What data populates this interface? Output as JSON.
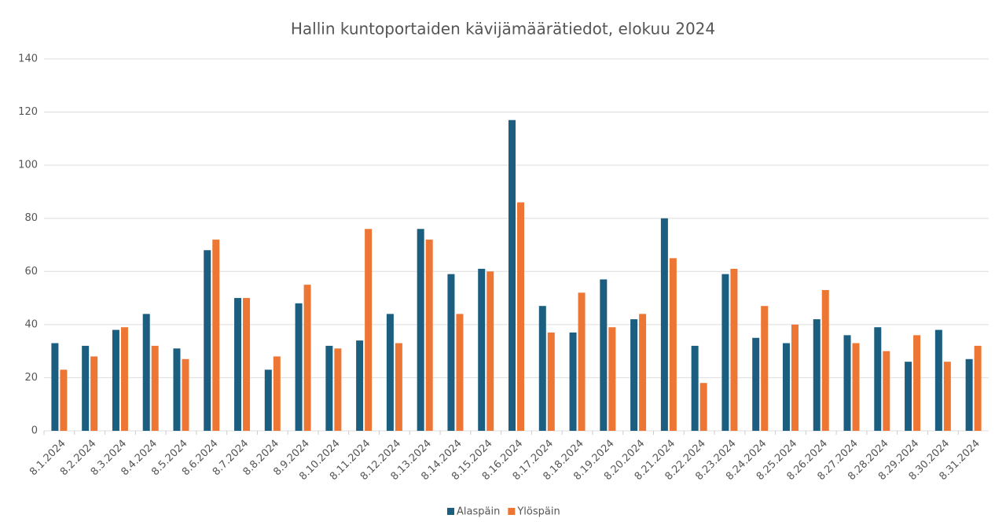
{
  "chart_data": {
    "type": "bar",
    "title": "Hallin kuntoportaiden kävijämäärätiedot, elokuu 2024",
    "categories": [
      "8.1.2024",
      "8.2.2024",
      "8.3.2024",
      "8.4.2024",
      "8.5.2024",
      "8.6.2024",
      "8.7.2024",
      "8.8.2024",
      "8.9.2024",
      "8.10.2024",
      "8.11.2024",
      "8.12.2024",
      "8.13.2024",
      "8.14.2024",
      "8.15.2024",
      "8.16.2024",
      "8.17.2024",
      "8.18.2024",
      "8.19.2024",
      "8.20.2024",
      "8.21.2024",
      "8.22.2024",
      "8.23.2024",
      "8.24.2024",
      "8.25.2024",
      "8.26.2024",
      "8.27.2024",
      "8.28.2024",
      "8.29.2024",
      "8.30.2024",
      "8.31.2024"
    ],
    "series": [
      {
        "name": "Alaspäin",
        "color": "#1b5e7f",
        "values": [
          33,
          32,
          38,
          44,
          31,
          68,
          50,
          23,
          48,
          32,
          34,
          44,
          76,
          59,
          61,
          117,
          47,
          37,
          57,
          42,
          80,
          32,
          59,
          35,
          33,
          42,
          36,
          39,
          26,
          38,
          27
        ]
      },
      {
        "name": "Ylöspäin",
        "color": "#ee7634",
        "values": [
          23,
          28,
          39,
          32,
          27,
          72,
          50,
          28,
          55,
          31,
          76,
          33,
          72,
          44,
          60,
          86,
          37,
          52,
          39,
          44,
          65,
          18,
          61,
          47,
          40,
          53,
          33,
          30,
          36,
          26,
          32
        ]
      }
    ],
    "ylim": [
      0,
      140
    ],
    "yticks": [
      0,
      20,
      40,
      60,
      80,
      100,
      120,
      140
    ],
    "grid": true,
    "legend": "bottom"
  }
}
